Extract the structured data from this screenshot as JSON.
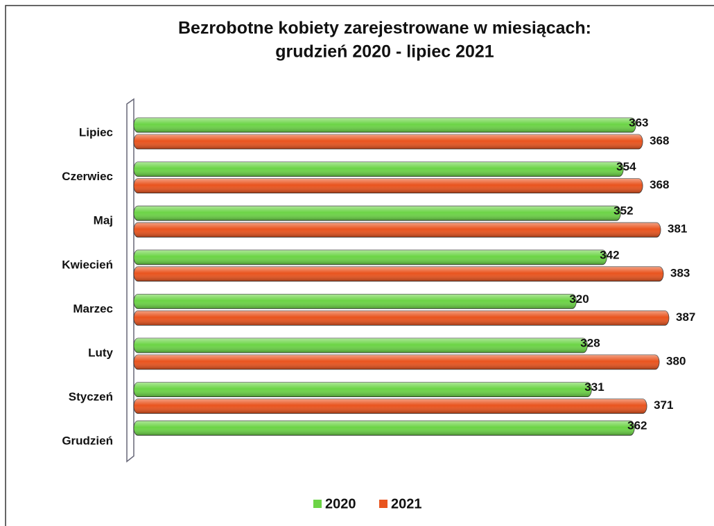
{
  "chart_data": {
    "type": "bar",
    "orientation": "horizontal",
    "title": "Bezrobotne kobiety zarejestrowane w miesiącach:",
    "subtitle": "grudzień 2020 - lipiec 2021",
    "categories": [
      "Lipiec",
      "Czerwiec",
      "Maj",
      "Kwiecień",
      "Marzec",
      "Luty",
      "Styczeń",
      "Grudzień"
    ],
    "series": [
      {
        "name": "2020",
        "color": "#6cd446",
        "values": [
          363,
          354,
          352,
          342,
          320,
          328,
          331,
          362
        ]
      },
      {
        "name": "2021",
        "color": "#e9541e",
        "values": [
          368,
          368,
          381,
          383,
          387,
          380,
          371,
          null
        ]
      }
    ],
    "legend": "bottom"
  }
}
